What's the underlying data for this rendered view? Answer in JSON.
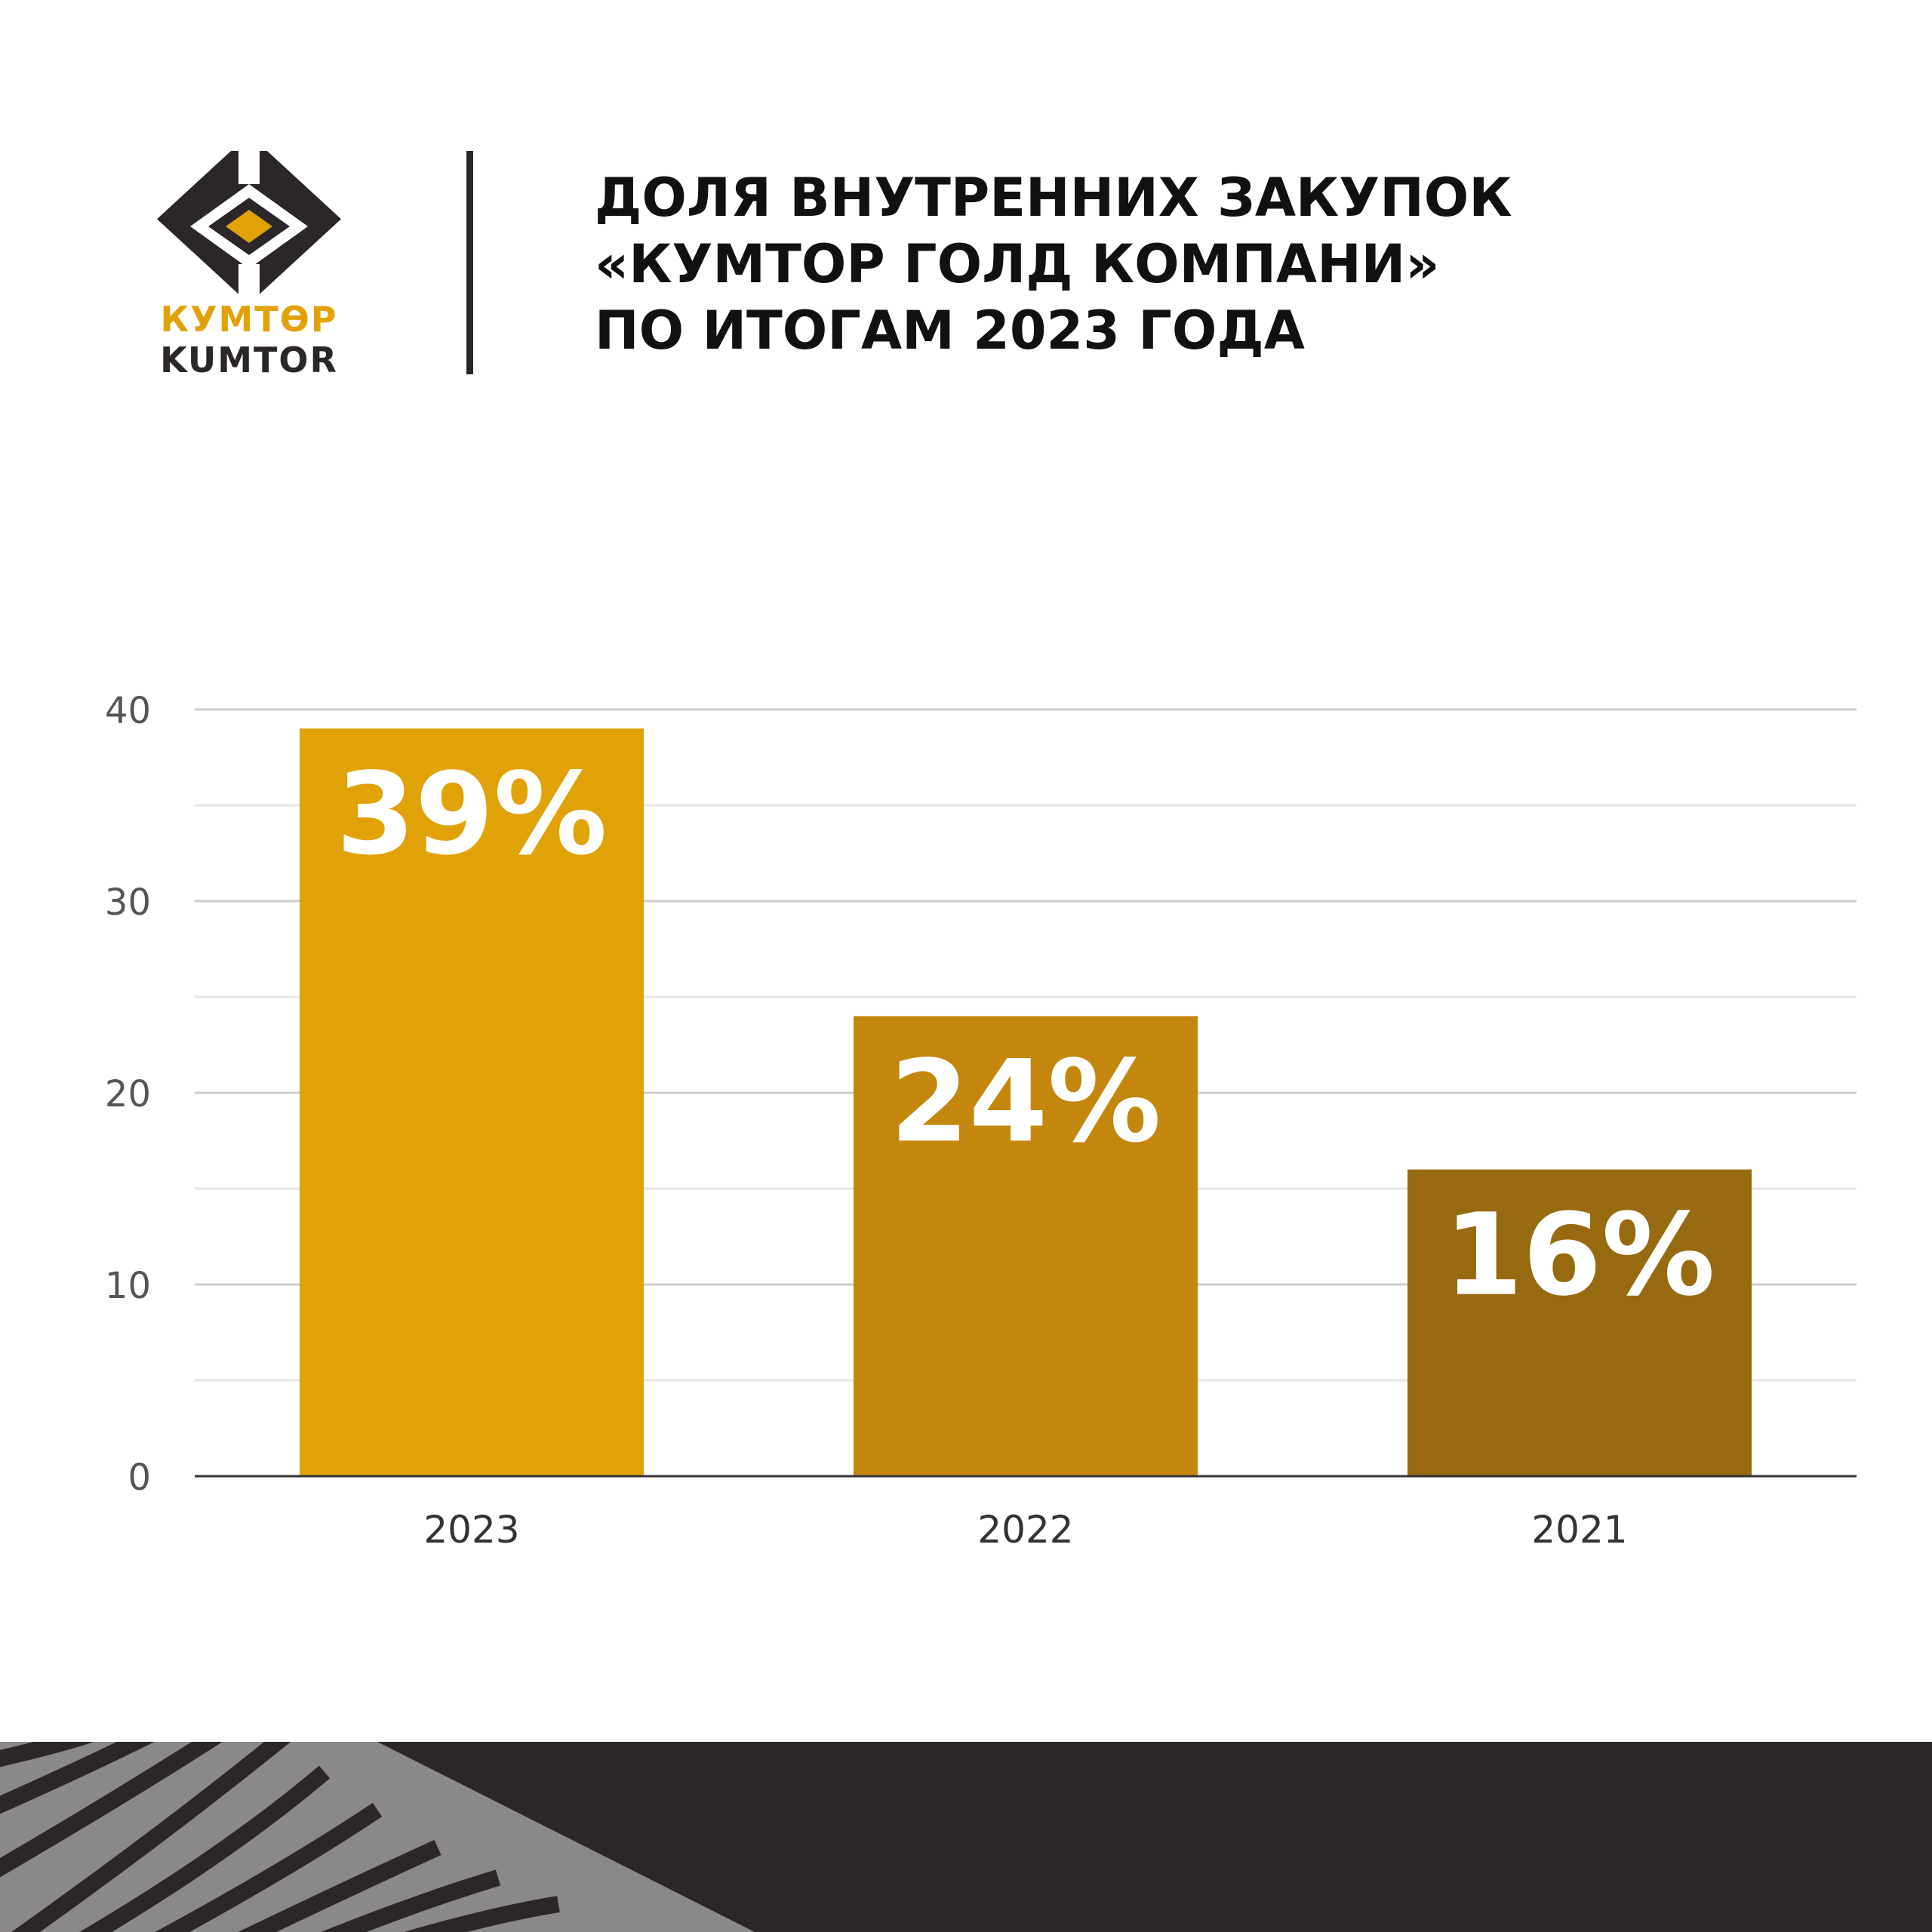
{
  "brand": {
    "logo_text_cyrillic": "КУМТӨР",
    "logo_text_latin": "KUMTOR",
    "colors": {
      "gold": "#E1A208",
      "dark": "#2b2629"
    }
  },
  "header": {
    "title_lines": [
      "ДОЛЯ ВНУТРЕННИХ ЗАКУПОК",
      "«КУМТОР ГОЛД КОМПАНИ»",
      "ПО ИТОГАМ 2023 ГОДА"
    ]
  },
  "chart_data": {
    "type": "bar",
    "categories": [
      "2023",
      "2022",
      "2021"
    ],
    "values": [
      39,
      24,
      16
    ],
    "data_labels": [
      "39%",
      "24%",
      "16%"
    ],
    "bar_colors": [
      "#E1A208",
      "#C4860C",
      "#986A10"
    ],
    "title": "",
    "xlabel": "",
    "ylabel": "",
    "ylim": [
      0,
      40
    ],
    "y_ticks": [
      0,
      10,
      20,
      30,
      40
    ],
    "grid": true
  }
}
